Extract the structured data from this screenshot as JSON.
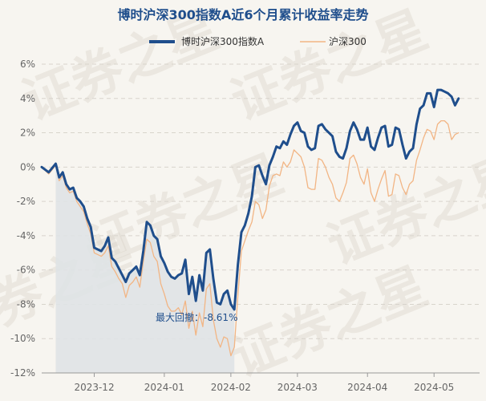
{
  "chart_data": {
    "type": "line",
    "title": "博时沪深300指数A近6个月累计收益率走势",
    "ylim": [
      -12,
      6
    ],
    "yticks": [
      6,
      4,
      2,
      0,
      -2,
      -4,
      -6,
      -8,
      -10,
      -12
    ],
    "ytick_suffix": "%",
    "xticks": [
      "2023-12",
      "2024-01",
      "2024-02",
      "2024-03",
      "2024-04",
      "2024-05"
    ],
    "xtick_positions": [
      15,
      35,
      54,
      73,
      93,
      112
    ],
    "n_points": 126,
    "series": [
      {
        "name": "博时沪深300指数A",
        "color": "#1f4e8c",
        "values": [
          [
            0,
            0.0
          ],
          [
            2,
            -0.3
          ],
          [
            4,
            0.2
          ],
          [
            5,
            -0.6
          ],
          [
            6,
            -0.3
          ],
          [
            7,
            -1.0
          ],
          [
            8,
            -1.3
          ],
          [
            9,
            -1.2
          ],
          [
            10,
            -1.8
          ],
          [
            11,
            -2.0
          ],
          [
            12,
            -2.3
          ],
          [
            13,
            -3.0
          ],
          [
            14,
            -3.5
          ],
          [
            15,
            -4.7
          ],
          [
            16,
            -4.8
          ],
          [
            17,
            -4.9
          ],
          [
            18,
            -4.6
          ],
          [
            19,
            -4.1
          ],
          [
            20,
            -5.3
          ],
          [
            21,
            -5.5
          ],
          [
            22,
            -5.9
          ],
          [
            23,
            -6.3
          ],
          [
            24,
            -6.7
          ],
          [
            25,
            -6.2
          ],
          [
            26,
            -6.0
          ],
          [
            27,
            -5.8
          ],
          [
            28,
            -6.3
          ],
          [
            29,
            -4.9
          ],
          [
            30,
            -3.2
          ],
          [
            31,
            -3.4
          ],
          [
            32,
            -4.0
          ],
          [
            33,
            -4.2
          ],
          [
            34,
            -5.2
          ],
          [
            35,
            -5.6
          ],
          [
            36,
            -6.1
          ],
          [
            37,
            -6.4
          ],
          [
            38,
            -6.5
          ],
          [
            39,
            -6.3
          ],
          [
            40,
            -6.2
          ],
          [
            41,
            -5.4
          ],
          [
            42,
            -7.4
          ],
          [
            43,
            -6.4
          ],
          [
            44,
            -7.8
          ],
          [
            45,
            -6.3
          ],
          [
            46,
            -7.2
          ],
          [
            47,
            -5.0
          ],
          [
            48,
            -4.8
          ],
          [
            49,
            -6.5
          ],
          [
            50,
            -7.9
          ],
          [
            51,
            -8.0
          ],
          [
            52,
            -7.4
          ],
          [
            53,
            -7.2
          ],
          [
            54,
            -8.0
          ],
          [
            55,
            -8.3
          ],
          [
            56,
            -5.7
          ],
          [
            57,
            -3.8
          ],
          [
            58,
            -3.4
          ],
          [
            59,
            -2.7
          ],
          [
            60,
            -1.7
          ],
          [
            61,
            0.0
          ],
          [
            62,
            0.1
          ],
          [
            63,
            -0.5
          ],
          [
            64,
            -1.0
          ],
          [
            65,
            0.1
          ],
          [
            66,
            0.6
          ],
          [
            67,
            1.2
          ],
          [
            68,
            1.1
          ],
          [
            69,
            1.5
          ],
          [
            70,
            1.3
          ],
          [
            71,
            1.9
          ],
          [
            72,
            2.4
          ],
          [
            73,
            2.6
          ],
          [
            74,
            2.1
          ],
          [
            75,
            2.0
          ],
          [
            76,
            1.2
          ],
          [
            77,
            1.0
          ],
          [
            78,
            1.1
          ],
          [
            79,
            2.4
          ],
          [
            80,
            2.5
          ],
          [
            81,
            2.2
          ],
          [
            82,
            2.0
          ],
          [
            83,
            1.8
          ],
          [
            84,
            0.9
          ],
          [
            85,
            0.6
          ],
          [
            86,
            0.5
          ],
          [
            87,
            1.1
          ],
          [
            88,
            2.1
          ],
          [
            89,
            2.6
          ],
          [
            90,
            2.2
          ],
          [
            91,
            1.6
          ],
          [
            92,
            1.6
          ],
          [
            93,
            2.3
          ],
          [
            94,
            1.2
          ],
          [
            95,
            1.0
          ],
          [
            96,
            1.7
          ],
          [
            97,
            2.3
          ],
          [
            98,
            2.4
          ],
          [
            99,
            1.2
          ],
          [
            100,
            1.3
          ],
          [
            101,
            2.3
          ],
          [
            102,
            2.2
          ],
          [
            103,
            1.3
          ],
          [
            104,
            0.5
          ],
          [
            105,
            0.9
          ],
          [
            106,
            1.1
          ],
          [
            107,
            2.5
          ],
          [
            108,
            3.4
          ],
          [
            109,
            3.6
          ],
          [
            110,
            4.3
          ],
          [
            111,
            4.3
          ],
          [
            112,
            3.5
          ],
          [
            113,
            4.5
          ],
          [
            114,
            4.5
          ],
          [
            115,
            4.4
          ],
          [
            116,
            4.3
          ],
          [
            117,
            4.1
          ],
          [
            118,
            3.6
          ],
          [
            119,
            4.0
          ]
        ]
      },
      {
        "name": "沪深300",
        "color": "#f2b584",
        "values": [
          [
            0,
            0.0
          ],
          [
            2,
            -0.4
          ],
          [
            4,
            0.1
          ],
          [
            5,
            -0.8
          ],
          [
            6,
            -0.5
          ],
          [
            7,
            -1.2
          ],
          [
            8,
            -1.5
          ],
          [
            9,
            -1.4
          ],
          [
            10,
            -2.0
          ],
          [
            11,
            -2.3
          ],
          [
            12,
            -2.6
          ],
          [
            13,
            -3.3
          ],
          [
            14,
            -3.9
          ],
          [
            15,
            -5.0
          ],
          [
            16,
            -5.1
          ],
          [
            17,
            -5.2
          ],
          [
            18,
            -5.0
          ],
          [
            19,
            -4.6
          ],
          [
            20,
            -5.8
          ],
          [
            21,
            -6.1
          ],
          [
            22,
            -6.5
          ],
          [
            23,
            -6.8
          ],
          [
            24,
            -7.6
          ],
          [
            25,
            -6.9
          ],
          [
            26,
            -6.7
          ],
          [
            27,
            -6.4
          ],
          [
            28,
            -7.0
          ],
          [
            29,
            -5.5
          ],
          [
            30,
            -4.2
          ],
          [
            31,
            -4.4
          ],
          [
            32,
            -5.2
          ],
          [
            33,
            -5.5
          ],
          [
            34,
            -6.8
          ],
          [
            35,
            -7.4
          ],
          [
            36,
            -8.1
          ],
          [
            37,
            -8.4
          ],
          [
            38,
            -8.4
          ],
          [
            39,
            -8.2
          ],
          [
            40,
            -8.6
          ],
          [
            41,
            -7.8
          ],
          [
            42,
            -9.4
          ],
          [
            43,
            -8.4
          ],
          [
            44,
            -9.8
          ],
          [
            45,
            -8.5
          ],
          [
            46,
            -9.3
          ],
          [
            47,
            -7.1
          ],
          [
            48,
            -6.8
          ],
          [
            49,
            -8.9
          ],
          [
            50,
            -10.0
          ],
          [
            51,
            -10.5
          ],
          [
            52,
            -9.9
          ],
          [
            53,
            -10.0
          ],
          [
            54,
            -11.0
          ],
          [
            55,
            -10.5
          ],
          [
            56,
            -7.5
          ],
          [
            57,
            -4.9
          ],
          [
            58,
            -4.3
          ],
          [
            59,
            -3.7
          ],
          [
            60,
            -3.2
          ],
          [
            61,
            -2.0
          ],
          [
            62,
            -2.2
          ],
          [
            63,
            -3.0
          ],
          [
            64,
            -2.5
          ],
          [
            65,
            -1.1
          ],
          [
            66,
            -0.5
          ],
          [
            67,
            -0.4
          ],
          [
            68,
            -0.5
          ],
          [
            69,
            0.3
          ],
          [
            70,
            0.0
          ],
          [
            71,
            0.3
          ],
          [
            72,
            1.0
          ],
          [
            73,
            0.8
          ],
          [
            74,
            0.6
          ],
          [
            75,
            0.0
          ],
          [
            76,
            -1.2
          ],
          [
            77,
            -1.3
          ],
          [
            78,
            -1.3
          ],
          [
            79,
            0.5
          ],
          [
            80,
            0.4
          ],
          [
            81,
            0.0
          ],
          [
            82,
            -0.6
          ],
          [
            83,
            -1.0
          ],
          [
            84,
            -1.8
          ],
          [
            85,
            -2.0
          ],
          [
            86,
            -1.5
          ],
          [
            87,
            -0.9
          ],
          [
            88,
            0.5
          ],
          [
            89,
            0.7
          ],
          [
            90,
            0.2
          ],
          [
            91,
            -0.6
          ],
          [
            92,
            -1.0
          ],
          [
            93,
            -0.1
          ],
          [
            94,
            -1.5
          ],
          [
            95,
            -2.0
          ],
          [
            96,
            -1.3
          ],
          [
            97,
            -0.7
          ],
          [
            98,
            -0.2
          ],
          [
            99,
            -1.7
          ],
          [
            100,
            -1.6
          ],
          [
            101,
            -0.4
          ],
          [
            102,
            -0.5
          ],
          [
            103,
            -1.2
          ],
          [
            104,
            -1.6
          ],
          [
            105,
            -1.0
          ],
          [
            106,
            -0.8
          ],
          [
            107,
            0.4
          ],
          [
            108,
            1.0
          ],
          [
            109,
            1.7
          ],
          [
            110,
            2.2
          ],
          [
            111,
            2.1
          ],
          [
            112,
            1.6
          ],
          [
            113,
            2.5
          ],
          [
            114,
            2.7
          ],
          [
            115,
            2.7
          ],
          [
            116,
            2.5
          ],
          [
            117,
            1.6
          ],
          [
            118,
            1.9
          ],
          [
            119,
            2.0
          ]
        ]
      }
    ],
    "drawdown": {
      "label": "最大回撤：",
      "value": "-8.61%",
      "start_index": 4,
      "end_index": 55
    }
  },
  "watermark": "证券之星"
}
